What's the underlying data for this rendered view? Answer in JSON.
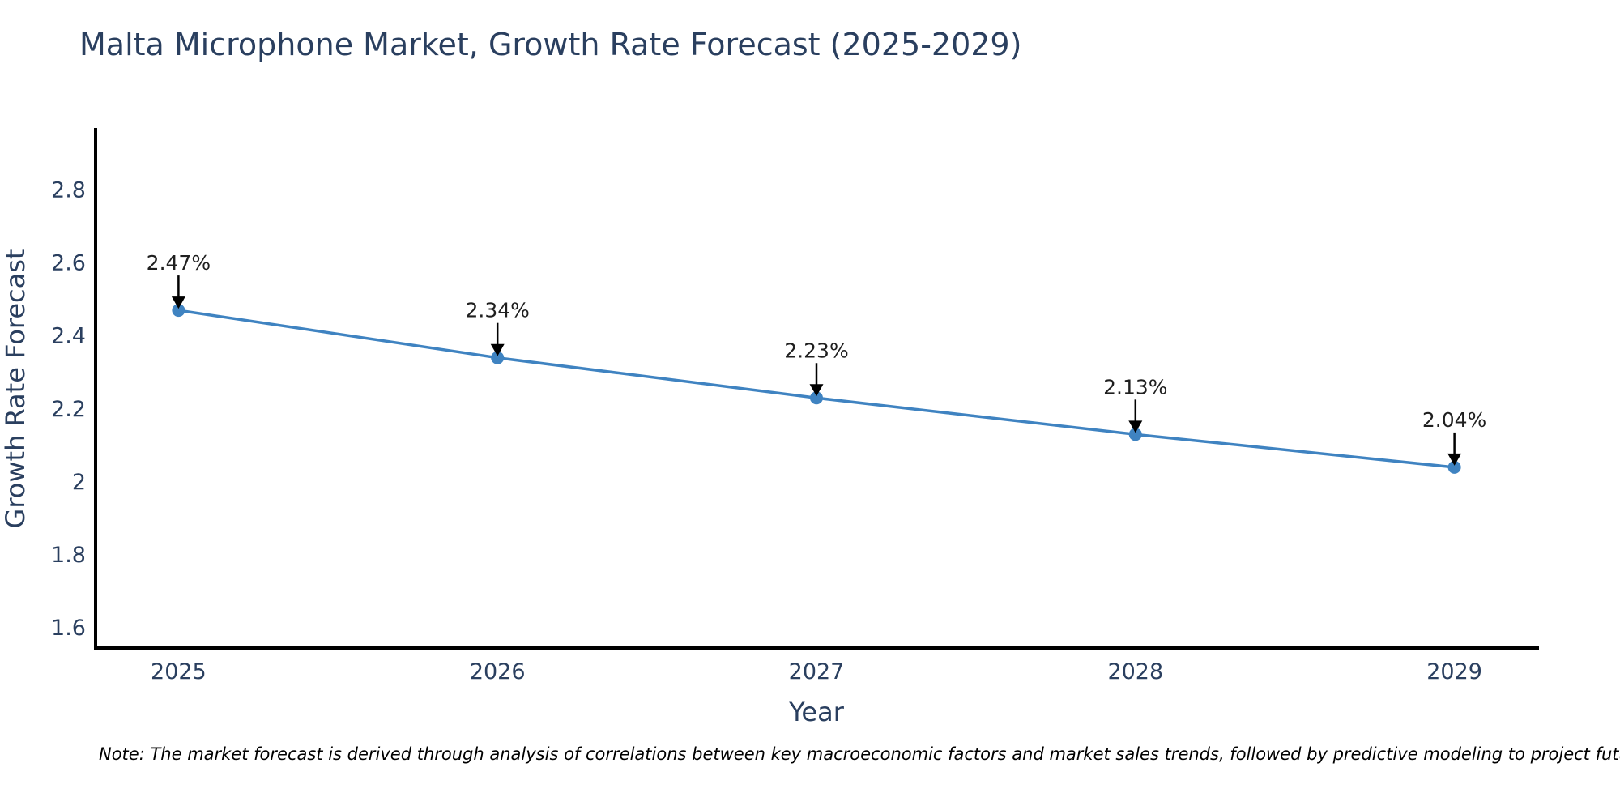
{
  "page": {
    "background_color": "#ffffff"
  },
  "chart_data": {
    "type": "line",
    "title": "Malta Microphone Market, Growth Rate Forecast (2025-2029)",
    "xlabel": "Year",
    "ylabel": "Growth Rate Forecast",
    "categories": [
      2025,
      2026,
      2027,
      2028,
      2029
    ],
    "series": [
      {
        "name": "Growth Rate Forecast",
        "values": [
          2.47,
          2.34,
          2.23,
          2.13,
          2.04
        ],
        "point_labels": [
          "2.47%",
          "2.34%",
          "2.23%",
          "2.13%",
          "2.04%"
        ]
      }
    ],
    "xticks": [
      "2025",
      "2026",
      "2027",
      "2028",
      "2029"
    ],
    "yticks": [
      "1.6",
      "1.8",
      "2",
      "2.2",
      "2.4",
      "2.6",
      "2.8"
    ],
    "ytick_values": [
      1.6,
      1.8,
      2.0,
      2.2,
      2.4,
      2.6,
      2.8
    ],
    "xlim": [
      2024.74,
      2029.26
    ],
    "ylim": [
      1.545,
      2.965
    ],
    "grid": false,
    "legend": false,
    "marker": "circle",
    "annotation_style": "value label above point with black down-arrow",
    "colors": {
      "line": "#3f83c1",
      "marker": "#3f83c1",
      "axis_line": "#000000",
      "title_text": "#2a3f5f",
      "axis_text": "#2a3f5f",
      "tick_text": "#2a3f5f",
      "annotation_text": "#1f1f1f",
      "annotation_arrow": "#000000"
    }
  },
  "note": {
    "text": "Note: The market forecast is derived through analysis of correlations between key macroeconomic factors and market sales trends, followed by predictive modeling to project future sales"
  }
}
